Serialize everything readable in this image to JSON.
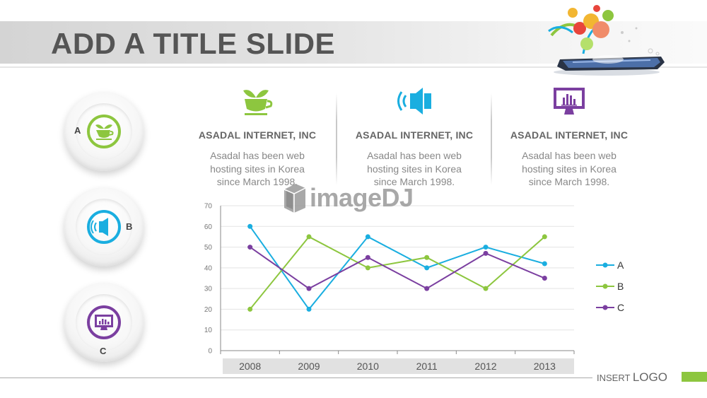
{
  "title": "ADD A TITLE SLIDE",
  "circles": [
    {
      "letter": "A",
      "icon": "cup-plant-icon",
      "color": "#8dc63f"
    },
    {
      "letter": "B",
      "icon": "speaker-icon",
      "color": "#1aaee0"
    },
    {
      "letter": "C",
      "icon": "monitor-chart-icon",
      "color": "#7b3fa0"
    }
  ],
  "columns": [
    {
      "icon": "cup-plant-icon",
      "color": "#8dc63f",
      "heading": "ASADAL INTERNET, INC",
      "body": "Asadal has been  web hosting sites in Korea since March 1998."
    },
    {
      "icon": "speaker-icon",
      "color": "#1aaee0",
      "heading": "ASADAL INTERNET, INC",
      "body": "Asadal has been  web hosting sites in Korea since March 1998."
    },
    {
      "icon": "monitor-chart-icon",
      "color": "#7b3fa0",
      "heading": "ASADAL INTERNET, INC",
      "body": "Asadal has been  web hosting sites in Korea since March 1998."
    }
  ],
  "watermark": "imageDJ",
  "chart_data": {
    "type": "line",
    "categories": [
      "2008",
      "2009",
      "2010",
      "2011",
      "2012",
      "2013"
    ],
    "series": [
      {
        "name": "A",
        "color": "#1aaee0",
        "values": [
          60,
          20,
          55,
          40,
          50,
          42
        ]
      },
      {
        "name": "B",
        "color": "#8dc63f",
        "values": [
          20,
          55,
          40,
          45,
          30,
          55
        ]
      },
      {
        "name": "C",
        "color": "#7b3fa0",
        "values": [
          50,
          30,
          45,
          30,
          47,
          35
        ]
      }
    ],
    "ylim": [
      0,
      70
    ],
    "yticks": [
      0,
      10,
      20,
      30,
      40,
      50,
      60,
      70
    ],
    "grid": true,
    "legend": "right"
  },
  "footer": {
    "prefix": "INSERT",
    "logo": "LOGO"
  }
}
